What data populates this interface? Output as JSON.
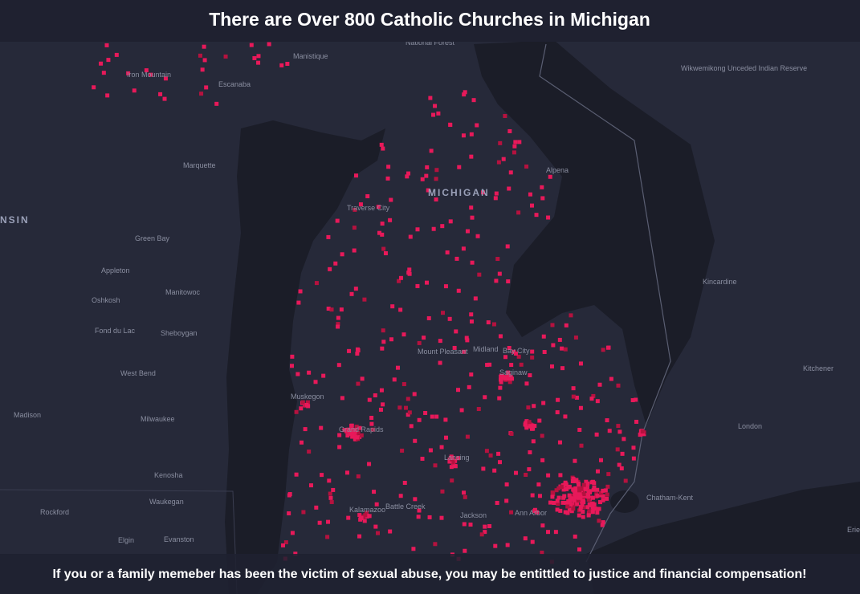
{
  "header": {
    "title": "There are Over 800 Catholic Churches in Michigan"
  },
  "map": {
    "labels": [
      "National Forest",
      "Manistique",
      "Iron Mountain",
      "Escanaba",
      "Marquette",
      "MICHIGAN",
      "Traverse City",
      "Alpena",
      "Wikwemikong Unceded Indian Reserve",
      "NSIN",
      "Green Bay",
      "Appleton",
      "Oshkosh",
      "Manitowoc",
      "Fond du Lac",
      "Sheboygan",
      "West Bend",
      "Madison",
      "Milwaukee",
      "Kenosha",
      "Waukegan",
      "Rockford",
      "Elgin",
      "Evanston",
      "Muskegon",
      "Grand Rapids",
      "Mount Pleasant",
      "Midland",
      "Bay City",
      "Saginaw",
      "Lansing",
      "Battle Creek",
      "Kalamazoo",
      "Jackson",
      "Ann Arbor",
      "Kincardine",
      "Kitchener",
      "London",
      "Chatham-Kent",
      "Erie"
    ]
  },
  "footer": {
    "text": "If you or a family memeber has been the victim of sexual abuse, you may be entittled to justice and financial compensation!"
  }
}
